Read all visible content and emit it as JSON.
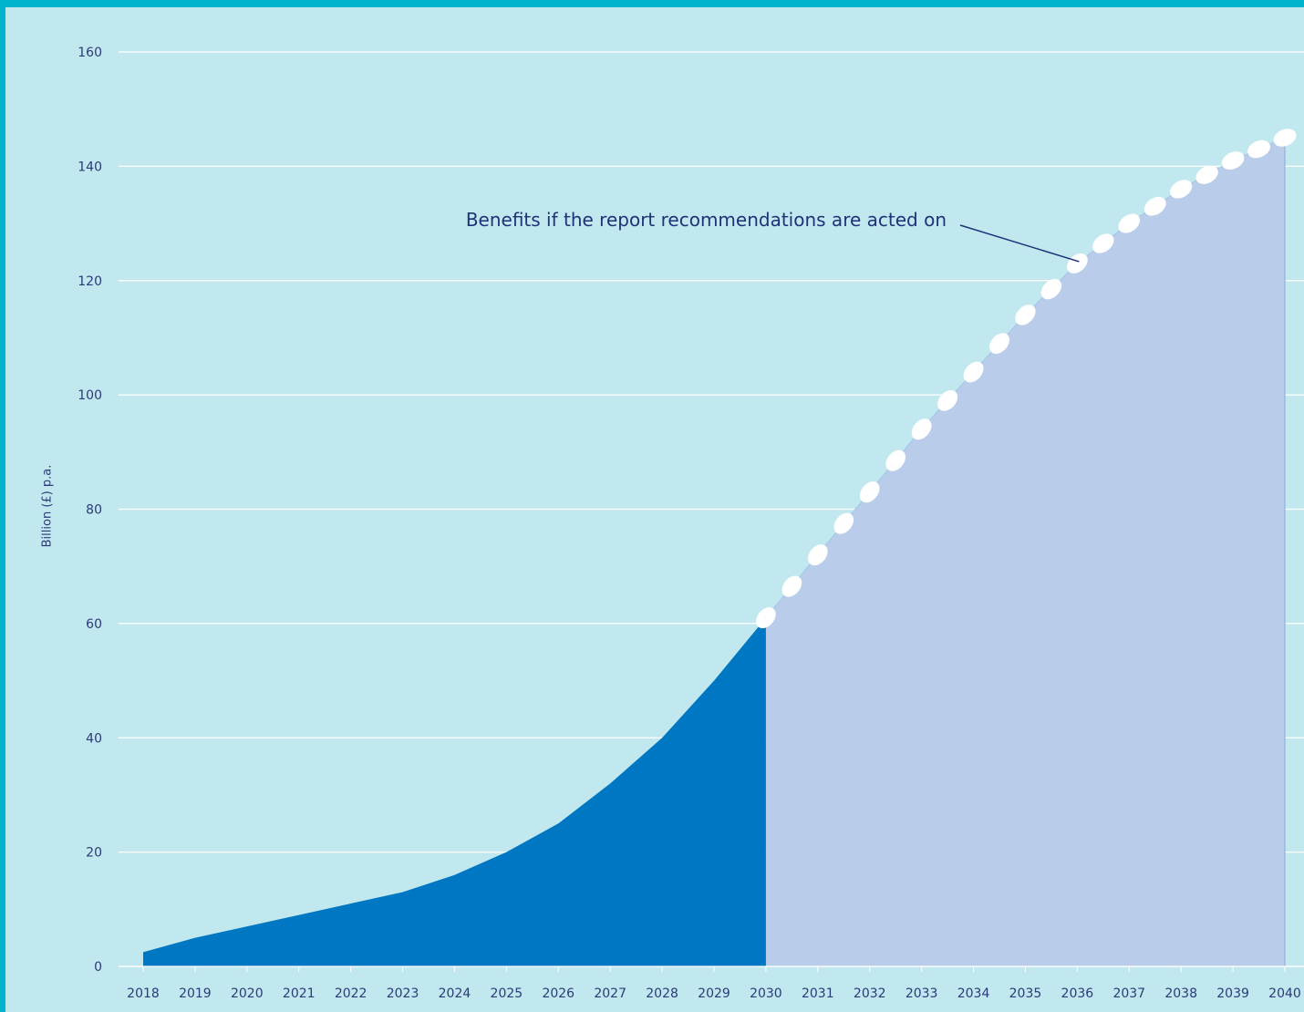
{
  "colors": {
    "background": "#c2e8ef",
    "accent_band": "#00b4cb",
    "actual_fill": "#0077c2",
    "projected_fill": "#b9cdea",
    "gridline": "#ffffff",
    "marker": "#ffffff",
    "text": "#2b3a78"
  },
  "chart_data": {
    "type": "area",
    "ylabel": "Billion (£) p.a.",
    "xlabel": "",
    "ylim": [
      0,
      160
    ],
    "yticks": [
      0,
      20,
      40,
      60,
      80,
      100,
      120,
      140,
      160
    ],
    "x": [
      "2018",
      "2019",
      "2020",
      "2021",
      "2022",
      "2023",
      "2024",
      "2025",
      "2026",
      "2027",
      "2028",
      "2029",
      "2030",
      "2031",
      "2032",
      "2033",
      "2034",
      "2035",
      "2036",
      "2037",
      "2038",
      "2039",
      "2040"
    ],
    "grid": true,
    "series": [
      {
        "x": [
          "2018",
          "2019",
          "2020",
          "2021",
          "2022",
          "2023",
          "2024",
          "2025",
          "2026",
          "2027",
          "2028",
          "2029",
          "2030"
        ],
        "values": [
          2.5,
          5,
          7,
          9,
          11,
          13,
          16,
          20,
          25,
          32,
          40,
          50,
          61
        ],
        "style": "solid-area"
      },
      {
        "x": [
          "2030",
          "2031",
          "2032",
          "2033",
          "2034",
          "2035",
          "2036",
          "2037",
          "2038",
          "2039",
          "2040"
        ],
        "values": [
          61,
          72,
          83,
          94,
          104,
          114,
          123,
          130,
          136,
          141,
          145
        ],
        "style": "dotted-marker-area"
      }
    ],
    "annotations": [
      {
        "text": "Benefits if the report recommendations are acted on",
        "target_x": "2036",
        "target_y": 123
      }
    ]
  }
}
